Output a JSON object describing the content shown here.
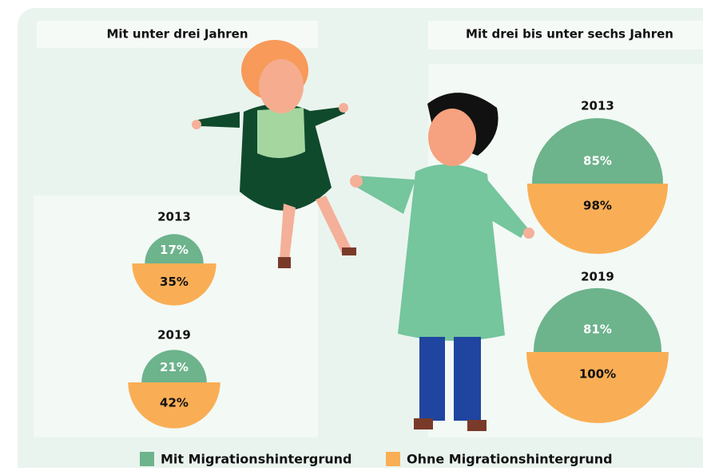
{
  "chart_data": {
    "type": "split-circles",
    "series": [
      {
        "name": "Mit Migrationshintergrund",
        "color": "#6db38c"
      },
      {
        "name": "Ohne Migrationshintergrund",
        "color": "#f9ae55"
      }
    ],
    "panels": [
      {
        "title": "Mit unter drei Jahren",
        "categories": [
          "2013",
          "2019"
        ],
        "values": [
          [
            17,
            21
          ],
          [
            35,
            42
          ]
        ],
        "value_labels": [
          [
            "17%",
            "21%"
          ],
          [
            "35%",
            "42%"
          ]
        ]
      },
      {
        "title": "Mit drei bis unter sechs Jahren",
        "categories": [
          "2013",
          "2019"
        ],
        "values": [
          [
            85,
            81
          ],
          [
            98,
            100
          ]
        ],
        "value_labels": [
          [
            "85%",
            "81%"
          ],
          [
            "98%",
            "100%"
          ]
        ]
      }
    ]
  }
}
